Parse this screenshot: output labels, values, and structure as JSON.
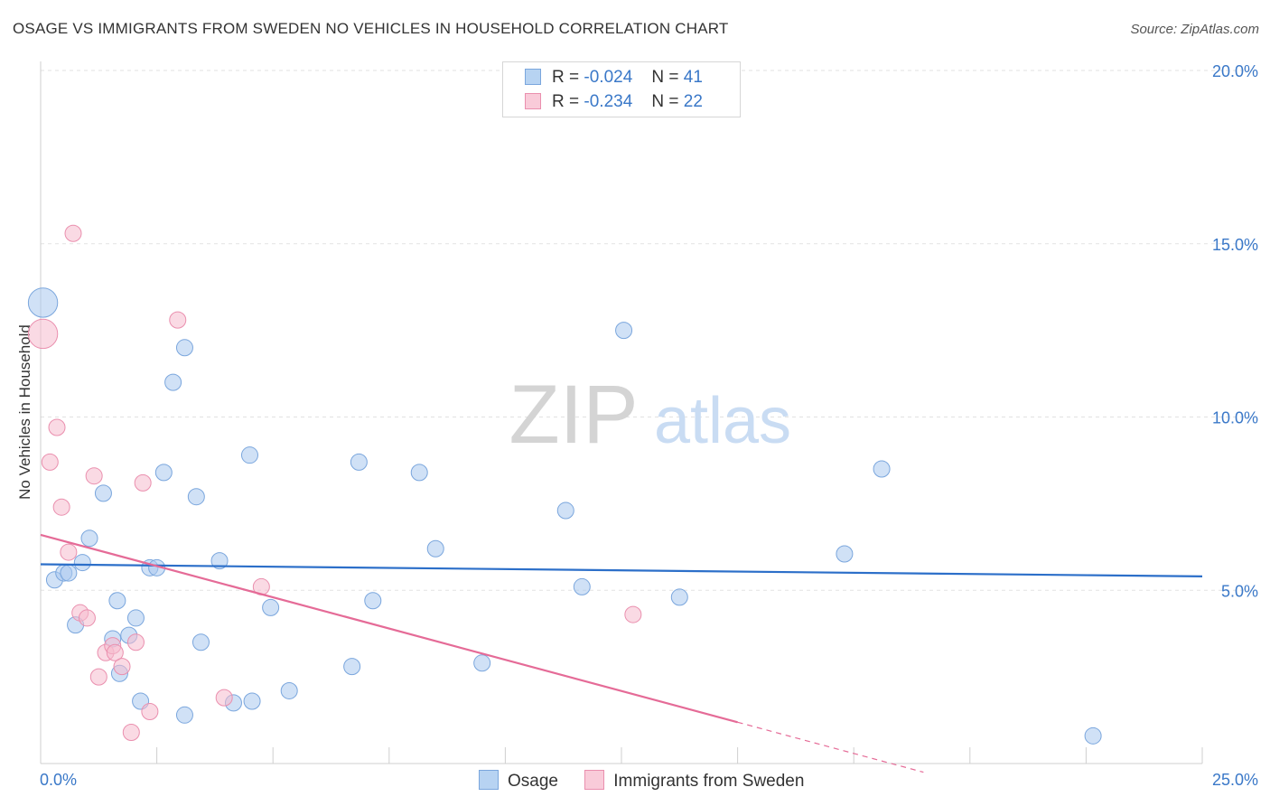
{
  "chart_data": {
    "type": "scatter",
    "title": "OSAGE VS IMMIGRANTS FROM SWEDEN NO VEHICLES IN HOUSEHOLD CORRELATION CHART",
    "source": "Source: ZipAtlas.com",
    "xlabel": "",
    "ylabel": "No Vehicles in Household",
    "xlim": [
      0,
      25
    ],
    "ylim": [
      0,
      20
    ],
    "x_tick_labels": [
      {
        "value": 0,
        "label": "0.0%"
      },
      {
        "value": 25,
        "label": "25.0%"
      }
    ],
    "y_tick_labels": [
      {
        "value": 5,
        "label": "5.0%"
      },
      {
        "value": 10,
        "label": "10.0%"
      },
      {
        "value": 15,
        "label": "15.0%"
      },
      {
        "value": 20,
        "label": "20.0%"
      }
    ],
    "watermark": {
      "part1": "ZIP",
      "part2": "atlas"
    },
    "legend": {
      "rows": [
        {
          "r_label": "R =",
          "r_value": "-0.024",
          "n_label": "N =",
          "n_value": "41"
        },
        {
          "r_label": "R =",
          "r_value": "-0.234",
          "n_label": "N =",
          "n_value": "22"
        }
      ]
    },
    "series": [
      {
        "name": "Osage",
        "color": "#a9c8ee",
        "stroke": "#7aa6dd",
        "trend_color": "#2c6fc9",
        "trend": {
          "x0": 0,
          "y0": 5.75,
          "x1": 25,
          "y1": 5.4,
          "solid_until": 25
        },
        "points": [
          [
            0.05,
            13.3,
            1.8
          ],
          [
            0.3,
            5.3,
            1
          ],
          [
            0.5,
            5.5,
            1
          ],
          [
            0.6,
            5.5,
            1
          ],
          [
            0.75,
            4.0,
            1
          ],
          [
            0.9,
            5.8,
            1
          ],
          [
            1.05,
            6.5,
            1
          ],
          [
            1.35,
            7.8,
            1
          ],
          [
            1.55,
            3.6,
            1
          ],
          [
            1.65,
            4.7,
            1
          ],
          [
            1.7,
            2.6,
            1
          ],
          [
            1.9,
            3.7,
            1
          ],
          [
            2.05,
            4.2,
            1
          ],
          [
            2.15,
            1.8,
            1
          ],
          [
            2.35,
            5.65,
            1
          ],
          [
            2.5,
            5.65,
            1
          ],
          [
            2.65,
            8.4,
            1
          ],
          [
            2.85,
            11.0,
            1
          ],
          [
            3.1,
            1.4,
            1
          ],
          [
            3.1,
            12.0,
            1
          ],
          [
            3.35,
            7.7,
            1
          ],
          [
            3.45,
            3.5,
            1
          ],
          [
            3.85,
            5.85,
            1
          ],
          [
            4.15,
            1.75,
            1
          ],
          [
            4.5,
            8.9,
            1
          ],
          [
            4.55,
            1.8,
            1
          ],
          [
            4.95,
            4.5,
            1
          ],
          [
            5.35,
            2.1,
            1
          ],
          [
            6.7,
            2.8,
            1
          ],
          [
            6.85,
            8.7,
            1
          ],
          [
            7.15,
            4.7,
            1
          ],
          [
            8.15,
            8.4,
            1
          ],
          [
            8.5,
            6.2,
            1
          ],
          [
            9.5,
            2.9,
            1
          ],
          [
            11.3,
            7.3,
            1
          ],
          [
            11.65,
            5.1,
            1
          ],
          [
            12.55,
            12.5,
            1
          ],
          [
            13.75,
            4.8,
            1
          ],
          [
            17.3,
            6.05,
            1
          ],
          [
            18.1,
            8.5,
            1
          ],
          [
            22.65,
            0.8,
            1
          ]
        ]
      },
      {
        "name": "Immigrants from Sweden",
        "color": "#f6bcce",
        "stroke": "#ea8fae",
        "trend_color": "#e56b97",
        "trend": {
          "x0": 0,
          "y0": 6.6,
          "x1": 19,
          "y1": -0.25,
          "solid_until": 15
        },
        "points": [
          [
            0.05,
            12.4,
            1.8
          ],
          [
            0.2,
            8.7,
            1
          ],
          [
            0.35,
            9.7,
            1
          ],
          [
            0.45,
            7.4,
            1
          ],
          [
            0.6,
            6.1,
            1
          ],
          [
            0.7,
            15.3,
            1
          ],
          [
            0.85,
            4.35,
            1
          ],
          [
            1.0,
            4.2,
            1
          ],
          [
            1.15,
            8.3,
            1
          ],
          [
            1.25,
            2.5,
            1
          ],
          [
            1.4,
            3.2,
            1
          ],
          [
            1.55,
            3.4,
            1
          ],
          [
            1.6,
            3.2,
            1
          ],
          [
            1.75,
            2.8,
            1
          ],
          [
            1.95,
            0.9,
            1
          ],
          [
            2.05,
            3.5,
            1
          ],
          [
            2.2,
            8.1,
            1
          ],
          [
            2.35,
            1.5,
            1
          ],
          [
            2.95,
            12.8,
            1
          ],
          [
            3.95,
            1.9,
            1
          ],
          [
            4.75,
            5.1,
            1
          ],
          [
            12.75,
            4.3,
            1
          ]
        ]
      }
    ]
  }
}
